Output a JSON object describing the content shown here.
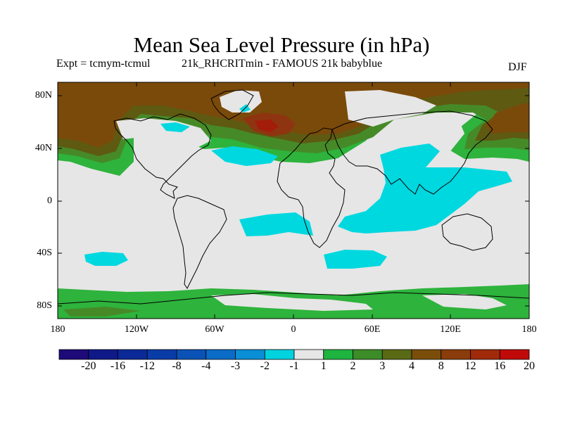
{
  "title": "Mean Sea Level Pressure (in hPa)",
  "subtitle_experiment": "Expt = tcmym-tcmul",
  "subtitle_run": "21k_RHCRITmin - FAMOUS 21k babyblue",
  "season": "DJF",
  "map": {
    "projection": "cylindrical equidistant",
    "lon_range": [
      -180,
      180
    ],
    "lat_range": [
      -90,
      90
    ],
    "y_tick_labels": [
      "80N",
      "40N",
      "0",
      "40S",
      "80S"
    ],
    "x_tick_labels": [
      "180",
      "120W",
      "60W",
      "0",
      "60E",
      "120E",
      "180"
    ],
    "background_fill_color": "#e6e6e6",
    "coastline_color": "#000000"
  },
  "colorbar": {
    "tick_labels": [
      "-20",
      "-16",
      "-12",
      "-8",
      "-4",
      "-3",
      "-2",
      "-1",
      "1",
      "2",
      "3",
      "4",
      "8",
      "12",
      "16",
      "20"
    ],
    "colors": [
      "#1e0a78",
      "#0f1988",
      "#0b2a98",
      "#0a3ca8",
      "#0a52b6",
      "#0a6cc6",
      "#0a8ed6",
      "#00d2de",
      "#e6e6e6",
      "#1fb340",
      "#3c8c28",
      "#5a6a14",
      "#7a4e0a",
      "#8a3c0a",
      "#a02a0a",
      "#c00a0a"
    ]
  },
  "fields": {
    "green_color": "#2eb33c",
    "dark_green_color": "#468a28",
    "olive_color": "#5e5a12",
    "brown_color": "#7a4a0a",
    "rust_color": "#8e3410",
    "red_color": "#a41c0a",
    "cyan_color": "#00d8e0"
  }
}
